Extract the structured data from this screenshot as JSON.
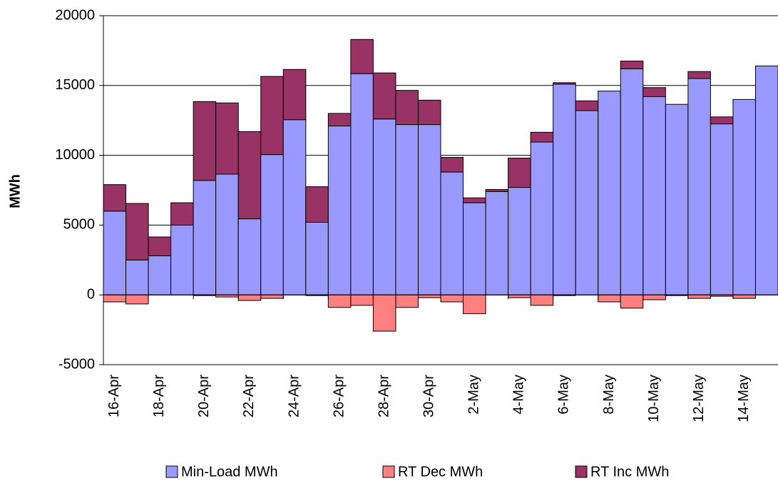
{
  "chart_data": {
    "type": "bar",
    "stacked": true,
    "y_label": "MWh",
    "categories": [
      "16-Apr",
      null,
      "18-Apr",
      null,
      "20-Apr",
      null,
      "22-Apr",
      null,
      "24-Apr",
      null,
      "26-Apr",
      null,
      "28-Apr",
      null,
      "30-Apr",
      null,
      "2-May",
      null,
      "4-May",
      null,
      "6-May",
      null,
      "8-May",
      null,
      "10-May",
      null,
      "12-May",
      null,
      "14-May",
      null
    ],
    "series": [
      {
        "name": "Min-Load MWh",
        "color": "#9999ff",
        "values": [
          6000,
          2500,
          2800,
          5000,
          8200,
          8650,
          5450,
          10050,
          12550,
          5200,
          12100,
          15850,
          12600,
          12200,
          12200,
          8800,
          6600,
          7400,
          7700,
          10950,
          15100,
          13200,
          14600,
          16200,
          14200,
          13650,
          15500,
          12250,
          14000,
          16400
        ]
      },
      {
        "name": "RT Dec MWh",
        "color": "#ff8080",
        "values": [
          -500,
          -650,
          0,
          0,
          -50,
          -150,
          -400,
          -250,
          0,
          -50,
          -900,
          -750,
          -2600,
          -900,
          -200,
          -500,
          -1350,
          0,
          -200,
          -750,
          -50,
          0,
          -500,
          -950,
          -350,
          -50,
          -250,
          -100,
          -250,
          0
        ]
      },
      {
        "name": "RT Inc MWh",
        "color": "#993366",
        "values": [
          1900,
          4050,
          1350,
          1600,
          5650,
          5100,
          6250,
          5600,
          3600,
          2550,
          900,
          2450,
          3300,
          2450,
          1750,
          1050,
          350,
          150,
          2100,
          700,
          100,
          700,
          0,
          550,
          650,
          0,
          500,
          500,
          0,
          0
        ]
      }
    ],
    "ylim": [
      -5000,
      20000
    ],
    "yticks": [
      -5000,
      0,
      5000,
      10000,
      15000,
      20000
    ]
  }
}
